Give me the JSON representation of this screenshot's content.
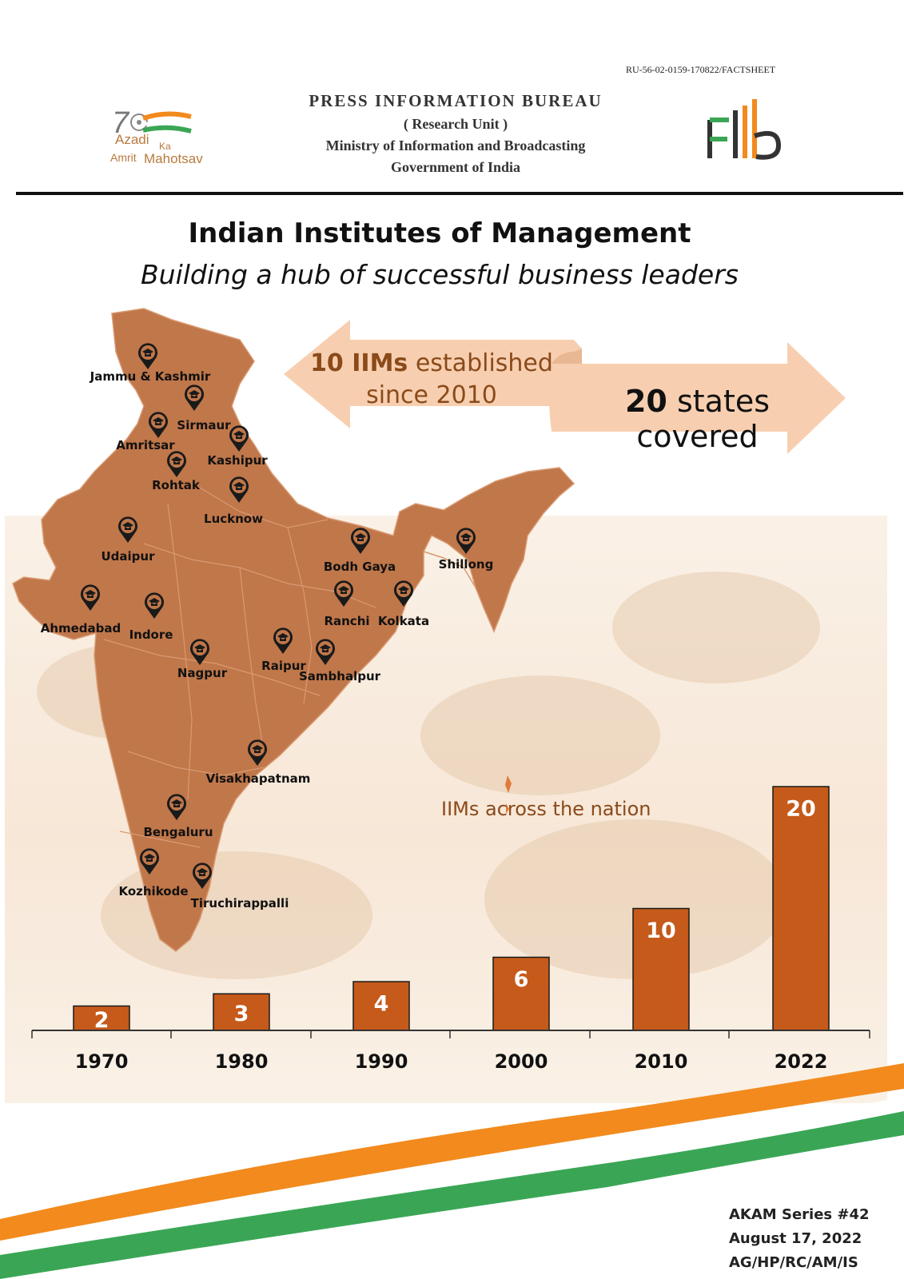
{
  "header": {
    "ref_code": "RU-56-02-0159-170822/FACTSHEET",
    "bureau": "PRESS INFORMATION BUREAU",
    "unit": "( Research Unit )",
    "ministry": "Ministry of Information and Broadcasting",
    "government": "Government of India",
    "logo_left": {
      "line1": "Azadi",
      "line2": "Ka",
      "line3": "Amrit",
      "line4": "Mahotsav"
    },
    "logo_right": "pib"
  },
  "title": "Indian Institutes of Management",
  "subtitle": "Building a hub of successful business leaders",
  "callouts": {
    "left_bold": "10 IIMs",
    "left_rest": " established",
    "left_line2": "since 2010",
    "right_bold": "20",
    "right_rest": " states covered"
  },
  "map": {
    "cities": [
      "Jammu & Kashmir",
      "Sirmaur",
      "Amritsar",
      "Kashipur",
      "Rohtak",
      "Lucknow",
      "Udaipur",
      "Bodh Gaya",
      "Shillong",
      "Ahmedabad",
      "Indore",
      "Ranchi",
      "Kolkata",
      "Nagpur",
      "Raipur",
      "Sambhalpur",
      "Visakhapatnam",
      "Bengaluru",
      "Kozhikode",
      "Tiruchirappalli"
    ]
  },
  "chart_data": {
    "type": "bar",
    "title": "IIMs across the nation",
    "categories": [
      "1970",
      "1980",
      "1990",
      "2000",
      "2010",
      "2022"
    ],
    "values": [
      2,
      3,
      4,
      6,
      10,
      20
    ],
    "ylim": [
      0,
      20
    ],
    "xlabel": "",
    "ylabel": "",
    "grid": false,
    "color": "#c55a1a"
  },
  "footer": {
    "series": "AKAM Series #42",
    "date": "August 17, 2022",
    "initials": "AG/HP/RC/AM/IS"
  },
  "colors": {
    "map_fill": "#c0774a",
    "accent_orange": "#f28a1d",
    "accent_green": "#3aa655",
    "callout_fill": "#f7cfb0"
  }
}
